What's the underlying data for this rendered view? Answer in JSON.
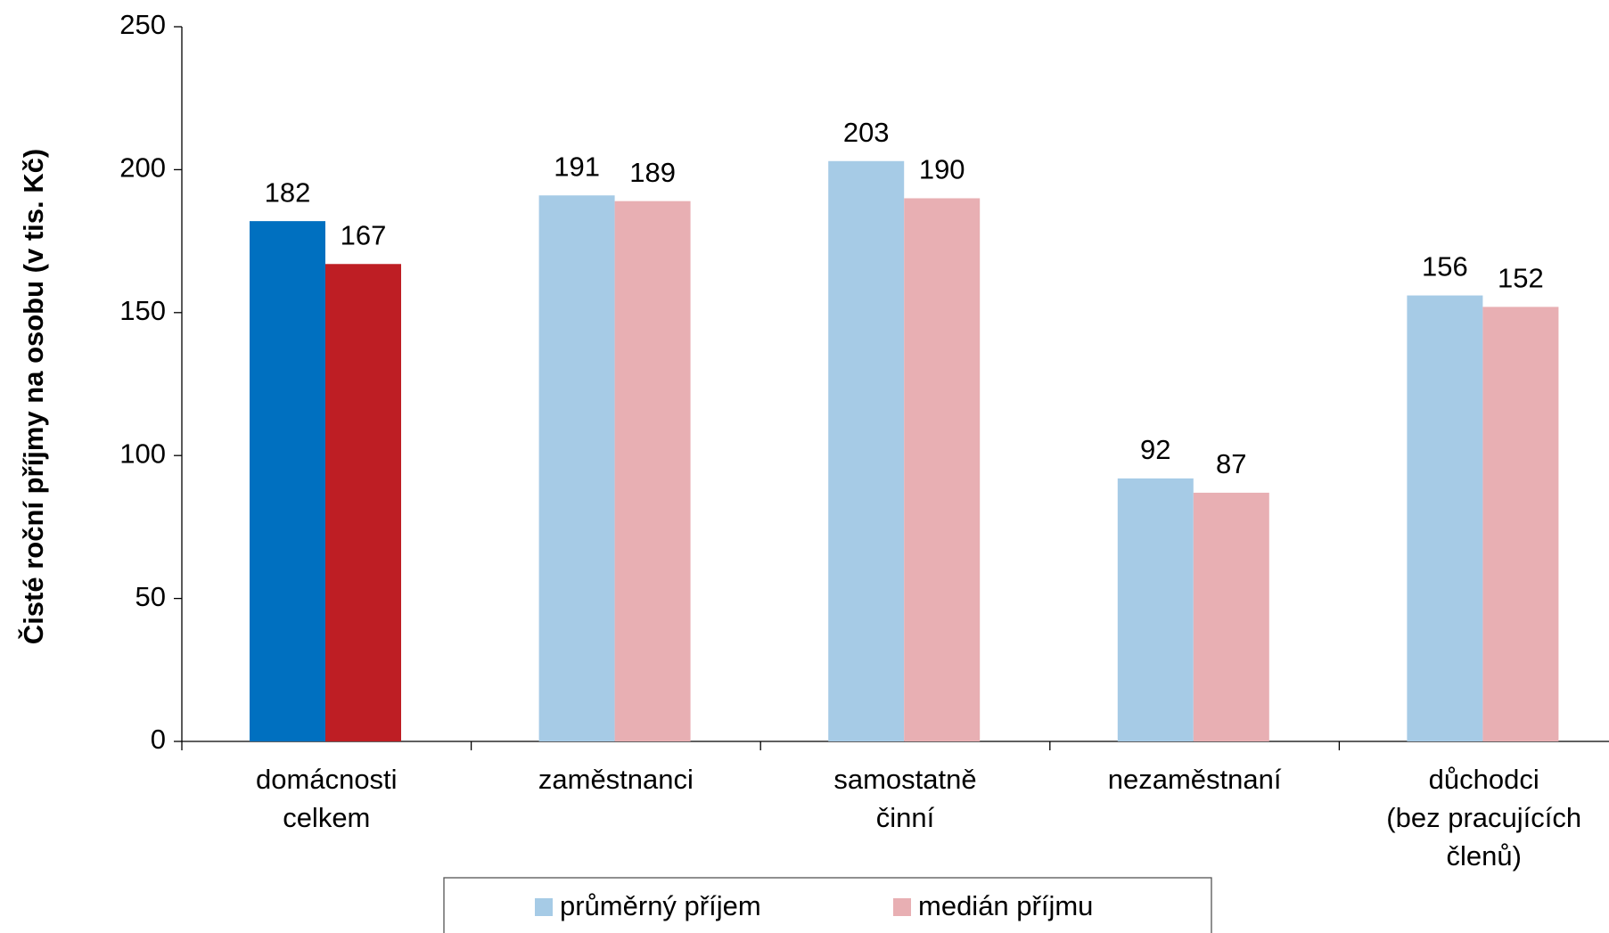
{
  "chart_data": {
    "type": "bar",
    "y_label": "Čisté roční příjmy na osobu (v tis. Kč)",
    "categories": [
      "domácnosti\ncelkem",
      "zaměstnanci",
      "samostatně\nčinní",
      "nezaměstnaní",
      "důchodci\n(bez pracujících\nčlenů)"
    ],
    "series": [
      {
        "name": "průměrný příjem",
        "color": "#a6cbe6",
        "colors": [
          "#0070c0",
          "#a6cbe6",
          "#a6cbe6",
          "#a6cbe6",
          "#a6cbe6"
        ],
        "values": [
          182,
          191,
          203,
          92,
          156
        ]
      },
      {
        "name": "medián příjmu",
        "color": "#e8afb3",
        "colors": [
          "#be1e24",
          "#e8afb3",
          "#e8afb3",
          "#e8afb3",
          "#e8afb3"
        ],
        "values": [
          167,
          189,
          190,
          87,
          152
        ]
      }
    ],
    "ylim": [
      0,
      250
    ],
    "yticks": [
      0,
      50,
      100,
      150,
      200,
      250
    ],
    "legend": "bottom"
  }
}
